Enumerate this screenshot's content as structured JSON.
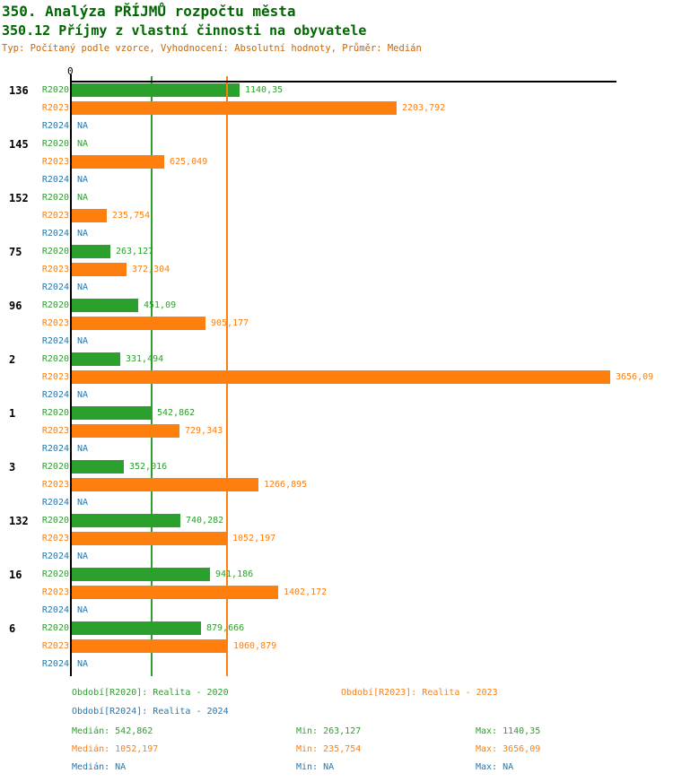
{
  "header": {
    "title": "350. Analýza PŘÍJMŮ rozpočtu města",
    "subtitle": "350.12 Příjmy z vlastní činnosti na obyvatele",
    "meta": "Typ: Počítaný podle vzorce, Vyhodnocení: Absolutní hodnoty, Průměr: Medián"
  },
  "colors": {
    "series_green": "#2ca02c",
    "series_orange": "#ff7f0e",
    "series_blue": "#1f77b4",
    "title_green": "#006600",
    "meta_orange": "#cc6600",
    "axis_black": "#000000"
  },
  "chart_data": {
    "type": "bar",
    "orientation": "horizontal",
    "title": "350.12 Příjmy z vlastní činnosti na obyvatele",
    "axis": {
      "zero_label": "0",
      "min": 0,
      "max": 3700,
      "grid": "off"
    },
    "categories": [
      "136",
      "145",
      "152",
      "75",
      "96",
      "2",
      "1",
      "3",
      "132",
      "16",
      "6"
    ],
    "series": [
      {
        "name": "R2020",
        "color": "#2ca02c",
        "values": [
          1140.35,
          null,
          null,
          263.127,
          451.09,
          331.494,
          542.862,
          352.016,
          740.282,
          941.186,
          879.666
        ],
        "labels": [
          "1140,35",
          "NA",
          "NA",
          "263,127",
          "451,09",
          "331,494",
          "542,862",
          "352,016",
          "740,282",
          "941,186",
          "879,666"
        ]
      },
      {
        "name": "R2023",
        "color": "#ff7f0e",
        "values": [
          2203.792,
          625.049,
          235.754,
          372.304,
          905.177,
          3656.09,
          729.343,
          1266.895,
          1052.197,
          1402.172,
          1060.879
        ],
        "labels": [
          "2203,792",
          "625,049",
          "235,754",
          "372,304",
          "905,177",
          "3656,09",
          "729,343",
          "1266,895",
          "1052,197",
          "1402,172",
          "1060,879"
        ]
      },
      {
        "name": "R2024",
        "color": "#1f77b4",
        "values": [
          null,
          null,
          null,
          null,
          null,
          null,
          null,
          null,
          null,
          null,
          null
        ],
        "labels": [
          "NA",
          "NA",
          "NA",
          "NA",
          "NA",
          "NA",
          "NA",
          "NA",
          "NA",
          "NA",
          "NA"
        ]
      }
    ],
    "median_lines": [
      {
        "series": "R2020",
        "value": 542.862,
        "color": "#2ca02c"
      },
      {
        "series": "R2023",
        "value": 1052.197,
        "color": "#ff7f0e"
      }
    ]
  },
  "legend": {
    "items": [
      {
        "label": "Období[R2020]: Realita - 2020"
      },
      {
        "label": "Období[R2023]: Realita - 2023"
      },
      {
        "label": "Období[R2024]: Realita - 2024"
      }
    ]
  },
  "stats": {
    "rows": [
      {
        "median": "Medián: 542,862",
        "min": "Min: 263,127",
        "max": "Max: 1140,35"
      },
      {
        "median": "Medián: 1052,197",
        "min": "Min: 235,754",
        "max": "Max: 3656,09"
      },
      {
        "median": "Medián: NA",
        "min": "Min: NA",
        "max": "Max: NA"
      }
    ]
  }
}
